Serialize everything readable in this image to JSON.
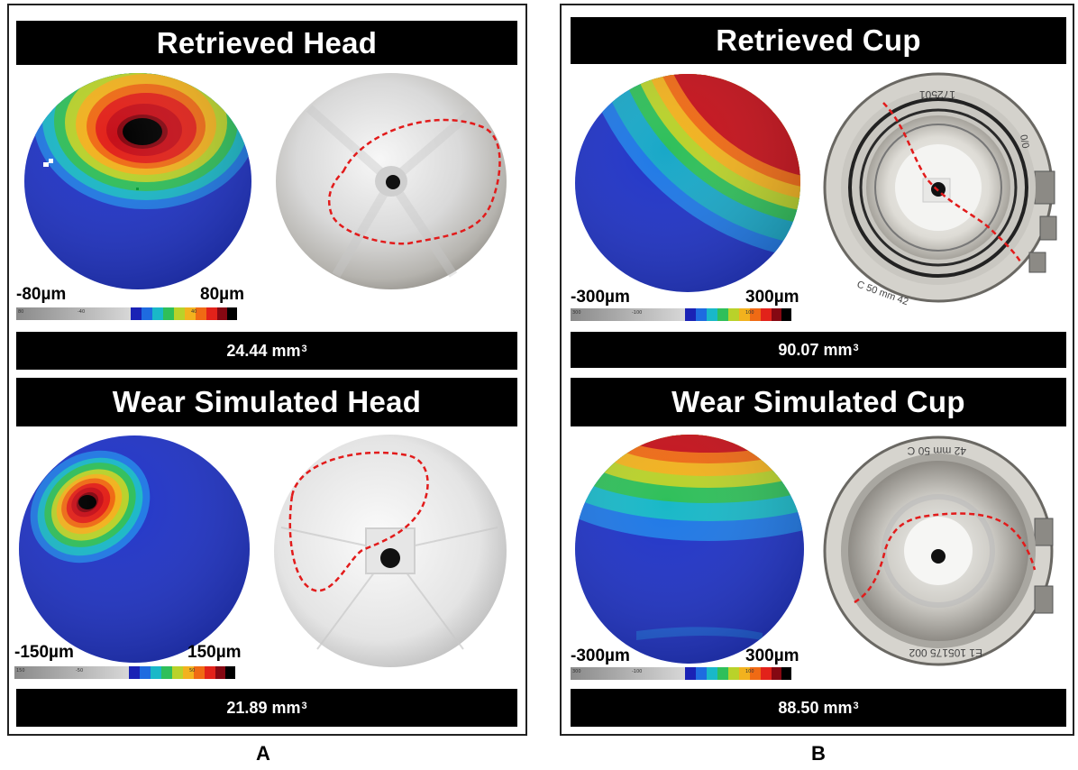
{
  "panels": {
    "a": {
      "letter": "A",
      "retrieved": {
        "title": "Retrieved Head",
        "min_label": "-80µm",
        "max_label": "80µm",
        "volume": "24.44 mm",
        "volume_unit_power": "3",
        "cbar_ticks": [
          "80",
          "-40",
          "40"
        ]
      },
      "simulated": {
        "title": "Wear Simulated Head",
        "min_label": "-150µm",
        "max_label": "150µm",
        "volume": "21.89 mm",
        "volume_unit_power": "3",
        "cbar_ticks": [
          "150",
          "-50",
          "50"
        ]
      }
    },
    "b": {
      "letter": "B",
      "retrieved": {
        "title": "Retrieved Cup",
        "min_label": "-300µm",
        "max_label": "300µm",
        "volume": "90.07 mm",
        "volume_unit_power": "3",
        "cbar_ticks": [
          "300",
          "-100",
          "100"
        ],
        "engraving": {
          "top": "172501",
          "side": "C 50 mm 42",
          "right": "0/0"
        }
      },
      "simulated": {
        "title": "Wear Simulated Cup",
        "min_label": "-300µm",
        "max_label": "300µm",
        "volume": "88.50 mm",
        "volume_unit_power": "3",
        "cbar_ticks": [
          "300",
          "-100",
          "100"
        ],
        "engraving": {
          "top": "42 mm 50 C",
          "bottom": "E1 105175 002"
        }
      }
    }
  },
  "colors": {
    "heatmap_base": "#1f33c8",
    "annotation_dash": "#e21b1b"
  }
}
